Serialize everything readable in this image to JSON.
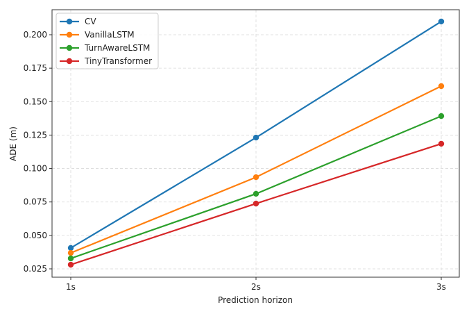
{
  "chart_data": {
    "type": "line",
    "title": "",
    "xlabel": "Prediction horizon",
    "ylabel": "ADE (m)",
    "categories": [
      "1s",
      "2s",
      "3s"
    ],
    "ylim": [
      0.019,
      0.219
    ],
    "yticks": [
      "0.025",
      "0.050",
      "0.075",
      "0.100",
      "0.125",
      "0.150",
      "0.175",
      "0.200"
    ],
    "grid": true,
    "legend_position": "upper left",
    "series": [
      {
        "name": "CV",
        "color": "#1f77b4",
        "values": [
          0.0406,
          0.1231,
          0.2099
        ]
      },
      {
        "name": "VanillaLSTM",
        "color": "#ff7f0e",
        "values": [
          0.0369,
          0.0935,
          0.1616
        ]
      },
      {
        "name": "TurnAwareLSTM",
        "color": "#2ca02c",
        "values": [
          0.0328,
          0.0811,
          0.1392
        ]
      },
      {
        "name": "TinyTransformer",
        "color": "#d62728",
        "values": [
          0.0281,
          0.0738,
          0.1185
        ]
      }
    ]
  }
}
